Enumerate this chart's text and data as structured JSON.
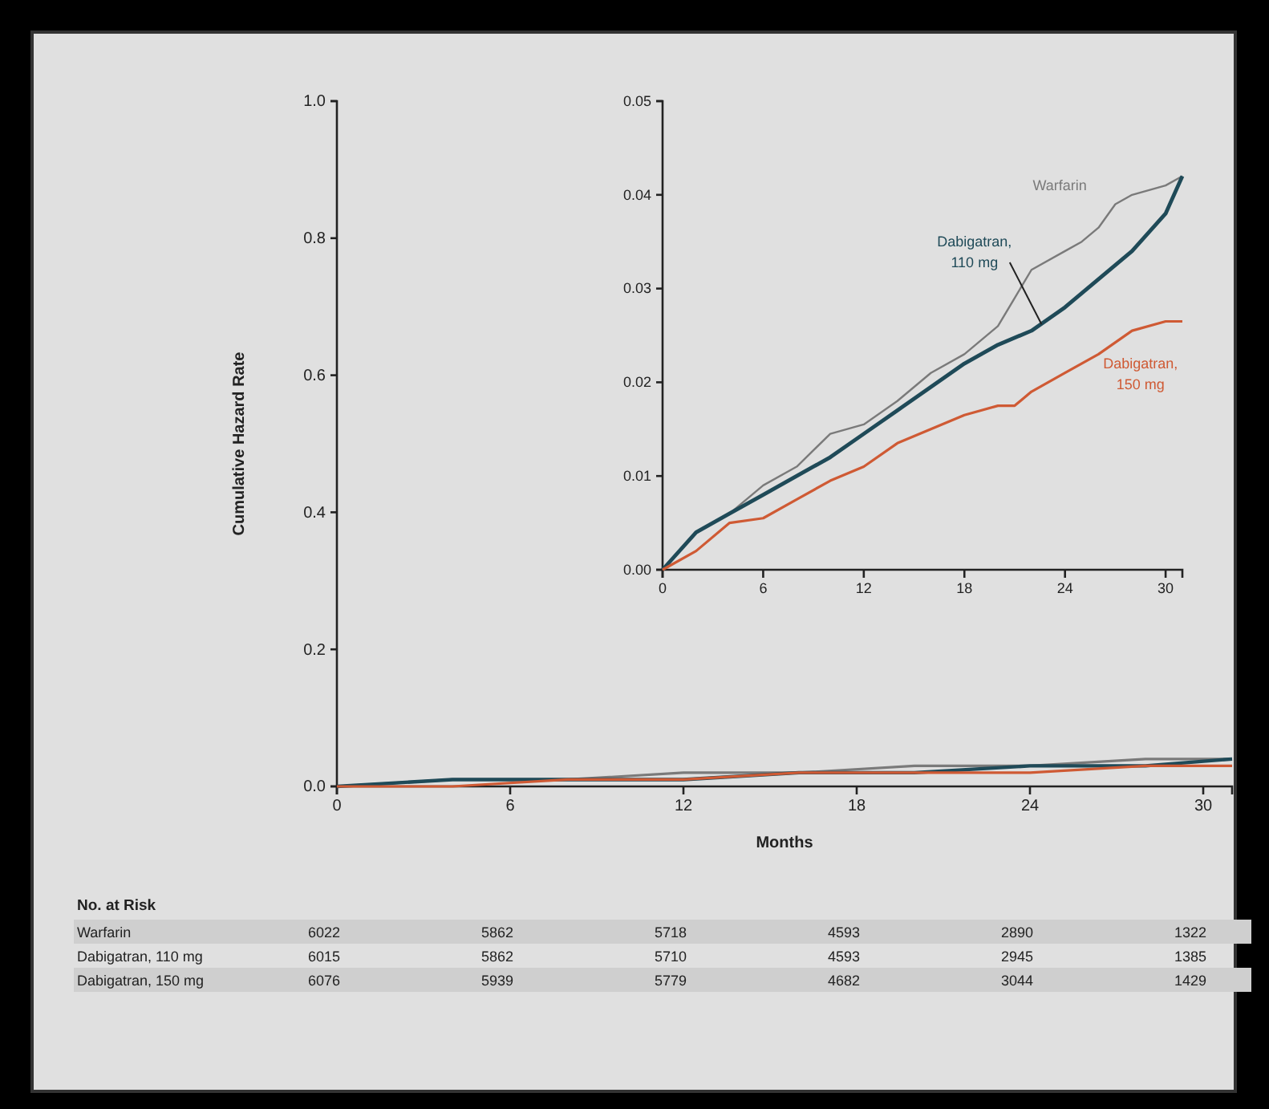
{
  "chart_data": [
    {
      "type": "step",
      "xlabel": "Months",
      "ylabel": "Cumulative Hazard Rate",
      "xlim": [
        0,
        31
      ],
      "xticks": [
        0,
        6,
        12,
        18,
        24,
        30
      ],
      "ylim": [
        0,
        1
      ],
      "yticks": [
        {
          "value": 0,
          "label": "0.0"
        },
        {
          "value": 0.2,
          "label": "0.2"
        },
        {
          "value": 0.4,
          "label": "0.4"
        },
        {
          "value": 0.6,
          "label": "0.6"
        },
        {
          "value": 0.8,
          "label": "0.8"
        },
        {
          "value": 1,
          "label": "1.0"
        }
      ],
      "grid": false,
      "legend": false,
      "series": [
        {
          "color": "#7a7a7a",
          "x": [
            0,
            4,
            8,
            12,
            16,
            20,
            24,
            28,
            31
          ],
          "values": [
            0,
            0.01,
            0.01,
            0.02,
            0.02,
            0.03,
            0.03,
            0.04,
            0.04
          ]
        },
        {
          "color": "#1f4a58",
          "x": [
            0,
            4,
            8,
            12,
            16,
            20,
            24,
            28,
            31
          ],
          "values": [
            0,
            0.01,
            0.01,
            0.01,
            0.02,
            0.02,
            0.03,
            0.03,
            0.04
          ]
        },
        {
          "color": "#cf5a34",
          "x": [
            0,
            4,
            8,
            12,
            16,
            20,
            24,
            28,
            31
          ],
          "values": [
            0,
            0,
            0.01,
            0.01,
            0.02,
            0.02,
            0.02,
            0.03,
            0.03
          ]
        }
      ],
      "annotations": [
        "No. at Risk",
        "Warfarin",
        "6022",
        "5862",
        "5718",
        "4593",
        "2890",
        "1322",
        "Dabigatran, 110 mg",
        "6015",
        "5862",
        "5710",
        "4593",
        "2945",
        "1385",
        "Dabigatran, 150 mg",
        "6076",
        "5939",
        "5779",
        "4682",
        "3044",
        "1429"
      ]
    },
    {
      "type": "step",
      "xlim": [
        0,
        31
      ],
      "xticks": [
        0,
        6,
        12,
        18,
        24,
        30
      ],
      "ylim": [
        0,
        0.05
      ],
      "yticks": [
        {
          "value": 0,
          "label": "0.00"
        },
        {
          "value": 0.01,
          "label": "0.01"
        },
        {
          "value": 0.02,
          "label": "0.02"
        },
        {
          "value": 0.03,
          "label": "0.03"
        },
        {
          "value": 0.04,
          "label": "0.04"
        },
        {
          "value": 0.05,
          "label": "0.05"
        }
      ],
      "grid": false,
      "legend": false,
      "series": [
        {
          "name": "Warfarin",
          "color": "#7a7a7a",
          "x": [
            0,
            2,
            4,
            6,
            8,
            10,
            12,
            14,
            16,
            18,
            20,
            21,
            22,
            24,
            25,
            26,
            27,
            28,
            30,
            31
          ],
          "values": [
            0,
            0.004,
            0.006,
            0.009,
            0.011,
            0.0145,
            0.0155,
            0.018,
            0.021,
            0.023,
            0.026,
            0.029,
            0.032,
            0.034,
            0.035,
            0.0365,
            0.039,
            0.04,
            0.041,
            0.042
          ]
        },
        {
          "name": "Dabigatran, 110 mg",
          "color": "#1f4a58",
          "x": [
            0,
            2,
            4,
            6,
            8,
            10,
            12,
            14,
            16,
            18,
            20,
            22,
            24,
            26,
            28,
            30,
            31
          ],
          "values": [
            0,
            0.004,
            0.006,
            0.008,
            0.01,
            0.012,
            0.0145,
            0.017,
            0.0195,
            0.022,
            0.024,
            0.0255,
            0.028,
            0.031,
            0.034,
            0.038,
            0.042
          ]
        },
        {
          "name": "Dabigatran, 150 mg",
          "color": "#cf5a34",
          "x": [
            0,
            2,
            4,
            6,
            8,
            10,
            12,
            14,
            16,
            18,
            20,
            21,
            22,
            24,
            26,
            28,
            30,
            31
          ],
          "values": [
            0,
            0.002,
            0.005,
            0.0055,
            0.0075,
            0.0095,
            0.011,
            0.0135,
            0.015,
            0.0165,
            0.0175,
            0.0175,
            0.019,
            0.021,
            0.023,
            0.0255,
            0.0265,
            0.0265
          ]
        }
      ]
    }
  ]
}
